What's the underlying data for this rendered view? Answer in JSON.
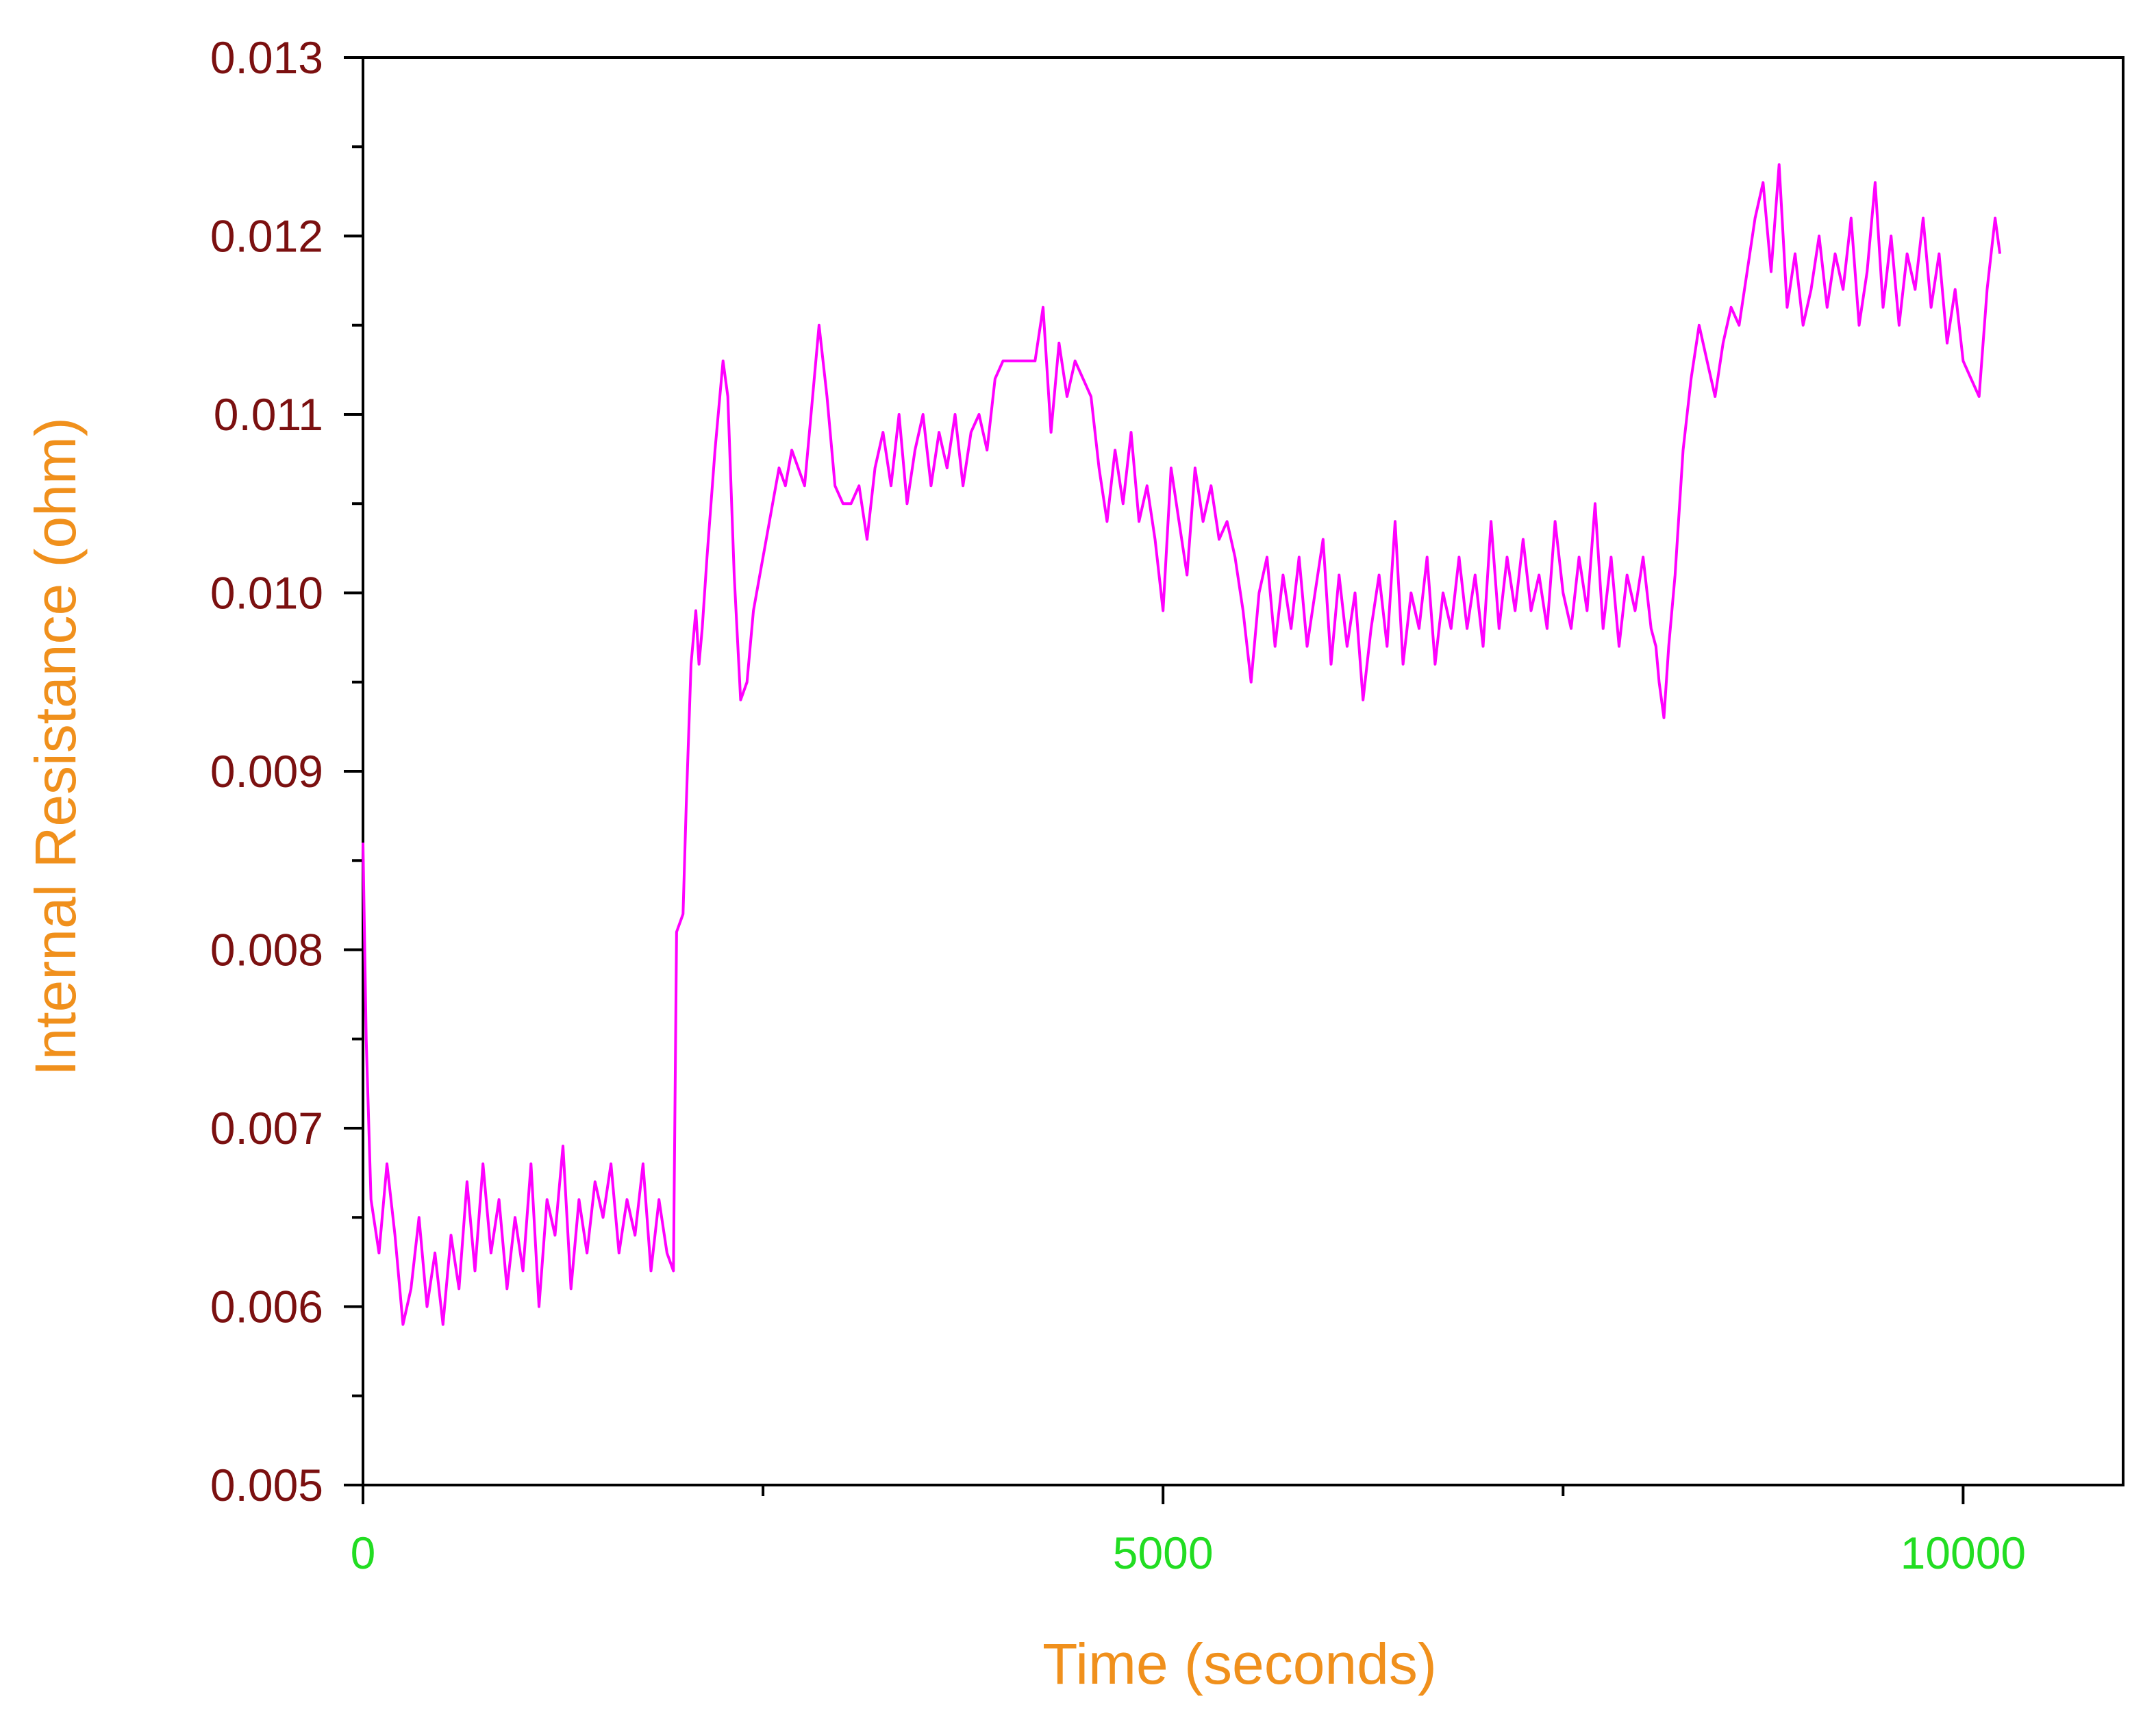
{
  "chart_data": {
    "type": "line",
    "title": "",
    "xlabel": "Time (seconds)",
    "ylabel": "Internal Resistance (ohm)",
    "xlim": [
      0,
      11000
    ],
    "ylim": [
      0.005,
      0.013
    ],
    "x_ticks": [
      {
        "value": 0,
        "label": "0"
      },
      {
        "value": 5000,
        "label": "5000"
      },
      {
        "value": 10000,
        "label": "10000"
      }
    ],
    "x_minor_ticks": [
      2500,
      7500
    ],
    "y_ticks": [
      {
        "value": 0.005,
        "label": "0.005"
      },
      {
        "value": 0.006,
        "label": "0.006"
      },
      {
        "value": 0.007,
        "label": "0.007"
      },
      {
        "value": 0.008,
        "label": "0.008"
      },
      {
        "value": 0.009,
        "label": "0.009"
      },
      {
        "value": 0.01,
        "label": "0.010"
      },
      {
        "value": 0.011,
        "label": "0.011"
      },
      {
        "value": 0.012,
        "label": "0.012"
      },
      {
        "value": 0.013,
        "label": "0.013"
      }
    ],
    "y_minor_ticks": [
      0.0055,
      0.0065,
      0.0075,
      0.0085,
      0.0095,
      0.0105,
      0.0115,
      0.0125
    ],
    "grid": false,
    "legend": "none",
    "colors": {
      "series": "#ff00ff",
      "y_tick_labels": "#7b1010",
      "x_tick_labels": "#22dd22",
      "axis_titles": "#f0901c",
      "axes": "#000000"
    },
    "series": [
      {
        "x": [
          0,
          20,
          50,
          100,
          150,
          200,
          250,
          300,
          350,
          400,
          450,
          500,
          550,
          600,
          650,
          700,
          750,
          800,
          850,
          900,
          950,
          1000,
          1050,
          1100,
          1150,
          1200,
          1250,
          1300,
          1350,
          1400,
          1450,
          1500,
          1550,
          1600,
          1650,
          1700,
          1750,
          1800,
          1850,
          1900,
          1940,
          1960,
          2000,
          2020,
          2050,
          2080,
          2100,
          2120,
          2150,
          2200,
          2250,
          2280,
          2320,
          2360,
          2400,
          2440,
          2480,
          2520,
          2560,
          2600,
          2640,
          2680,
          2720,
          2760,
          2800,
          2850,
          2900,
          2950,
          3000,
          3050,
          3100,
          3150,
          3200,
          3250,
          3300,
          3350,
          3400,
          3450,
          3500,
          3550,
          3600,
          3650,
          3700,
          3750,
          3800,
          3850,
          3900,
          3950,
          4000,
          4050,
          4100,
          4150,
          4200,
          4250,
          4300,
          4350,
          4400,
          4450,
          4500,
          4550,
          4600,
          4650,
          4700,
          4750,
          4800,
          4850,
          4900,
          4950,
          5000,
          5050,
          5100,
          5150,
          5200,
          5250,
          5300,
          5350,
          5400,
          5450,
          5500,
          5550,
          5600,
          5650,
          5700,
          5750,
          5800,
          5850,
          5900,
          5950,
          6000,
          6050,
          6100,
          6150,
          6200,
          6250,
          6300,
          6350,
          6400,
          6450,
          6500,
          6550,
          6600,
          6650,
          6700,
          6750,
          6800,
          6850,
          6900,
          6950,
          7000,
          7050,
          7100,
          7150,
          7200,
          7250,
          7300,
          7350,
          7400,
          7450,
          7500,
          7550,
          7600,
          7650,
          7700,
          7750,
          7800,
          7850,
          7900,
          7950,
          8000,
          8050,
          8080,
          8100,
          8130,
          8160,
          8200,
          8250,
          8300,
          8350,
          8400,
          8450,
          8500,
          8550,
          8600,
          8650,
          8700,
          8750,
          8800,
          8850,
          8900,
          8950,
          9000,
          9050,
          9100,
          9150,
          9200,
          9250,
          9300,
          9350,
          9400,
          9450,
          9500,
          9550,
          9600,
          9650,
          9700,
          9750,
          9800,
          9850,
          9900,
          9950,
          10000,
          10050,
          10100,
          10150,
          10200,
          10230
        ],
        "y": [
          0.0086,
          0.0075,
          0.0066,
          0.0063,
          0.0068,
          0.0064,
          0.0059,
          0.0061,
          0.0065,
          0.006,
          0.0063,
          0.0059,
          0.0064,
          0.0061,
          0.0067,
          0.0062,
          0.0068,
          0.0063,
          0.0066,
          0.0061,
          0.0065,
          0.0062,
          0.0068,
          0.006,
          0.0066,
          0.0064,
          0.0069,
          0.0061,
          0.0066,
          0.0063,
          0.0067,
          0.0065,
          0.0068,
          0.0063,
          0.0066,
          0.0064,
          0.0068,
          0.0062,
          0.0066,
          0.0063,
          0.0062,
          0.0081,
          0.0082,
          0.0088,
          0.0096,
          0.0099,
          0.0096,
          0.0098,
          0.0102,
          0.0108,
          0.0113,
          0.0111,
          0.0101,
          0.0094,
          0.0095,
          0.0099,
          0.0101,
          0.0103,
          0.0105,
          0.0107,
          0.0106,
          0.0108,
          0.0107,
          0.0106,
          0.011,
          0.0115,
          0.0111,
          0.0106,
          0.0105,
          0.0105,
          0.0106,
          0.0103,
          0.0107,
          0.0109,
          0.0106,
          0.011,
          0.0105,
          0.0108,
          0.011,
          0.0106,
          0.0109,
          0.0107,
          0.011,
          0.0106,
          0.0109,
          0.011,
          0.0108,
          0.0112,
          0.0113,
          0.0113,
          0.0113,
          0.0113,
          0.0113,
          0.0116,
          0.0109,
          0.0114,
          0.0111,
          0.0113,
          0.0112,
          0.0111,
          0.0107,
          0.0104,
          0.0108,
          0.0105,
          0.0109,
          0.0104,
          0.0106,
          0.0103,
          0.0099,
          0.0107,
          0.0104,
          0.0101,
          0.0107,
          0.0104,
          0.0106,
          0.0103,
          0.0104,
          0.0102,
          0.0099,
          0.0095,
          0.01,
          0.0102,
          0.0097,
          0.0101,
          0.0098,
          0.0102,
          0.0097,
          0.01,
          0.0103,
          0.0096,
          0.0101,
          0.0097,
          0.01,
          0.0094,
          0.0098,
          0.0101,
          0.0097,
          0.0104,
          0.0096,
          0.01,
          0.0098,
          0.0102,
          0.0096,
          0.01,
          0.0098,
          0.0102,
          0.0098,
          0.0101,
          0.0097,
          0.0104,
          0.0098,
          0.0102,
          0.0099,
          0.0103,
          0.0099,
          0.0101,
          0.0098,
          0.0104,
          0.01,
          0.0098,
          0.0102,
          0.0099,
          0.0105,
          0.0098,
          0.0102,
          0.0097,
          0.0101,
          0.0099,
          0.0102,
          0.0098,
          0.0097,
          0.0095,
          0.0093,
          0.0097,
          0.0101,
          0.0108,
          0.0112,
          0.0115,
          0.0113,
          0.0111,
          0.0114,
          0.0116,
          0.0115,
          0.0118,
          0.0121,
          0.0123,
          0.0118,
          0.0124,
          0.0116,
          0.0119,
          0.0115,
          0.0117,
          0.012,
          0.0116,
          0.0119,
          0.0117,
          0.0121,
          0.0115,
          0.0118,
          0.0123,
          0.0116,
          0.012,
          0.0115,
          0.0119,
          0.0117,
          0.0121,
          0.0116,
          0.0119,
          0.0114,
          0.0117,
          0.0113,
          0.0112,
          0.0111,
          0.0117,
          0.0121,
          0.0119
        ]
      }
    ]
  }
}
